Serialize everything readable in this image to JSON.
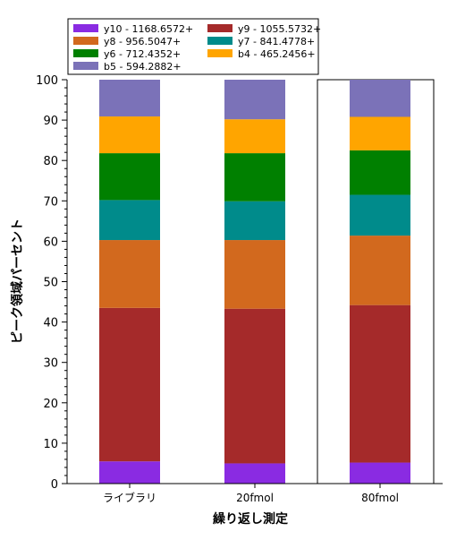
{
  "chart_data": {
    "type": "bar",
    "stacked": true,
    "categories": [
      "ライブラリ",
      "20fmol",
      "80fmol"
    ],
    "xlabel": "繰り返し測定",
    "ylabel": "ピーク領域パーセント",
    "ylim": [
      0,
      100
    ],
    "yticks": [
      0,
      10,
      20,
      30,
      40,
      50,
      60,
      70,
      80,
      90,
      100
    ],
    "legend_position": "top-left",
    "highlighted_category": "80fmol",
    "series": [
      {
        "name": "y10 - 1168.6572+",
        "color": "#8a2be2",
        "values": [
          5.5,
          5.0,
          5.2
        ]
      },
      {
        "name": "y9 - 1055.5732+",
        "color": "#a52a2a",
        "values": [
          38.0,
          38.3,
          39.0
        ]
      },
      {
        "name": "y8 - 956.5047+",
        "color": "#d2691e",
        "values": [
          16.8,
          17.0,
          17.2
        ]
      },
      {
        "name": "y7 - 841.4778+",
        "color": "#008b8b",
        "values": [
          9.9,
          9.6,
          10.1
        ]
      },
      {
        "name": "y6 - 712.4352+",
        "color": "#008000",
        "values": [
          11.6,
          11.9,
          11.0
        ]
      },
      {
        "name": "b4 - 465.2456+",
        "color": "#ffa500",
        "values": [
          9.1,
          8.4,
          8.3
        ]
      },
      {
        "name": "b5 - 594.2882+",
        "color": "#7b72b8",
        "values": [
          9.1,
          9.8,
          9.2
        ]
      }
    ]
  }
}
